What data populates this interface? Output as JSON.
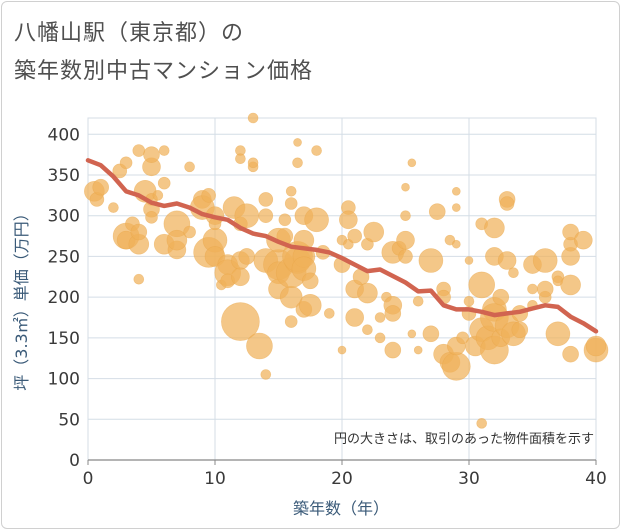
{
  "title_line1": "八幡山駅（東京都）の",
  "title_line2": "築年数別中古マンション価格",
  "chart_data": {
    "type": "scatter",
    "title": "八幡山駅（東京都）の築年数別中古マンション価格",
    "xlabel": "築年数（年）",
    "ylabel": "坪（3.3㎡）単価（万円）",
    "xlim": [
      0,
      40
    ],
    "ylim": [
      0,
      420
    ],
    "xticks": [
      0,
      10,
      20,
      30,
      40
    ],
    "yticks": [
      0,
      50,
      100,
      150,
      200,
      250,
      300,
      350,
      400
    ],
    "grid": true,
    "note": "円の大きさは、取引のあった物件面積を示す",
    "colors": {
      "bubble": "#f0b15a",
      "line": "#d16450",
      "grid": "#d4dde6",
      "axis": "#888888"
    },
    "series": [
      {
        "type": "line",
        "x": [
          0,
          1,
          2,
          3,
          4,
          5,
          6,
          7,
          8,
          9,
          10,
          11,
          12,
          13,
          14,
          15,
          16,
          17,
          18,
          19,
          20,
          21,
          22,
          23,
          24,
          25,
          26,
          27,
          28,
          29,
          30,
          31,
          32,
          33,
          34,
          35,
          36,
          37,
          38,
          39,
          40
        ],
        "values": [
          368,
          362,
          348,
          330,
          325,
          316,
          312,
          315,
          310,
          302,
          298,
          295,
          285,
          278,
          275,
          268,
          262,
          260,
          258,
          255,
          248,
          240,
          232,
          234,
          226,
          218,
          207,
          208,
          190,
          185,
          185,
          182,
          178,
          180,
          182,
          186,
          190,
          188,
          176,
          168,
          158
        ]
      },
      {
        "type": "scatter",
        "points": [
          [
            0.5,
            330,
            10
          ],
          [
            0.7,
            320,
            7
          ],
          [
            1,
            335,
            8
          ],
          [
            2,
            310,
            5
          ],
          [
            2.5,
            355,
            7
          ],
          [
            3,
            365,
            6
          ],
          [
            3,
            275,
            13
          ],
          [
            3,
            270,
            9
          ],
          [
            3.5,
            290,
            7
          ],
          [
            4,
            265,
            10
          ],
          [
            4,
            280,
            8
          ],
          [
            4,
            380,
            6
          ],
          [
            4,
            222,
            5
          ],
          [
            4.5,
            330,
            11
          ],
          [
            5,
            360,
            9
          ],
          [
            5,
            375,
            8
          ],
          [
            5,
            320,
            6
          ],
          [
            5,
            308,
            8
          ],
          [
            5,
            298,
            6
          ],
          [
            5.5,
            325,
            5
          ],
          [
            6,
            380,
            5
          ],
          [
            6,
            265,
            10
          ],
          [
            6,
            340,
            6
          ],
          [
            7,
            258,
            9
          ],
          [
            7,
            290,
            13
          ],
          [
            7,
            270,
            10
          ],
          [
            8,
            360,
            5
          ],
          [
            8,
            280,
            6
          ],
          [
            9,
            320,
            9
          ],
          [
            9,
            310,
            12
          ],
          [
            9.5,
            325,
            7
          ],
          [
            9.5,
            255,
            15
          ],
          [
            10,
            300,
            9
          ],
          [
            10,
            270,
            12
          ],
          [
            10,
            250,
            10
          ],
          [
            10,
            290,
            6
          ],
          [
            10.5,
            215,
            5
          ],
          [
            11,
            240,
            10
          ],
          [
            11,
            230,
            13
          ],
          [
            11,
            220,
            7
          ],
          [
            11.5,
            310,
            11
          ],
          [
            12,
            380,
            5
          ],
          [
            12,
            370,
            5
          ],
          [
            12,
            245,
            9
          ],
          [
            12,
            225,
            9
          ],
          [
            12,
            290,
            7
          ],
          [
            12,
            170,
            19
          ],
          [
            12.5,
            300,
            12
          ],
          [
            12.5,
            250,
            8
          ],
          [
            13,
            360,
            5
          ],
          [
            13,
            420,
            5
          ],
          [
            13,
            365,
            5
          ],
          [
            13.5,
            140,
            13
          ],
          [
            14,
            105,
            5
          ],
          [
            14,
            320,
            7
          ],
          [
            14,
            245,
            12
          ],
          [
            14,
            300,
            7
          ],
          [
            15,
            240,
            15
          ],
          [
            15,
            230,
            11
          ],
          [
            15,
            210,
            10
          ],
          [
            15,
            270,
            12
          ],
          [
            15.5,
            275,
            8
          ],
          [
            15.5,
            295,
            6
          ],
          [
            16,
            200,
            11
          ],
          [
            16,
            230,
            15
          ],
          [
            16,
            170,
            6
          ],
          [
            16,
            315,
            6
          ],
          [
            16,
            330,
            5
          ],
          [
            16.5,
            245,
            13
          ],
          [
            16.5,
            250,
            15
          ],
          [
            16.5,
            390,
            4
          ],
          [
            16.5,
            365,
            5
          ],
          [
            17,
            300,
            9
          ],
          [
            17,
            250,
            11
          ],
          [
            17,
            235,
            12
          ],
          [
            17,
            270,
            10
          ],
          [
            17,
            185,
            8
          ],
          [
            17.5,
            190,
            11
          ],
          [
            17.5,
            220,
            8
          ],
          [
            18,
            295,
            12
          ],
          [
            18,
            380,
            5
          ],
          [
            18.5,
            255,
            7
          ],
          [
            19,
            180,
            5
          ],
          [
            20,
            135,
            4
          ],
          [
            20,
            270,
            5
          ],
          [
            20,
            240,
            8
          ],
          [
            20.5,
            310,
            7
          ],
          [
            20.5,
            295,
            9
          ],
          [
            20.5,
            265,
            5
          ],
          [
            21,
            210,
            9
          ],
          [
            21,
            275,
            7
          ],
          [
            21,
            175,
            9
          ],
          [
            21.5,
            225,
            8
          ],
          [
            22,
            265,
            6
          ],
          [
            22,
            205,
            10
          ],
          [
            22,
            160,
            5
          ],
          [
            22.5,
            280,
            10
          ],
          [
            23,
            175,
            5
          ],
          [
            23,
            150,
            5
          ],
          [
            23.5,
            200,
            5
          ],
          [
            24,
            255,
            11
          ],
          [
            24,
            190,
            9
          ],
          [
            24,
            180,
            8
          ],
          [
            24,
            135,
            8
          ],
          [
            24.5,
            260,
            7
          ],
          [
            25,
            270,
            9
          ],
          [
            25,
            250,
            7
          ],
          [
            25,
            300,
            5
          ],
          [
            25,
            335,
            4
          ],
          [
            25.5,
            365,
            4
          ],
          [
            25.5,
            155,
            4
          ],
          [
            26,
            135,
            4
          ],
          [
            26,
            195,
            5
          ],
          [
            27,
            245,
            12
          ],
          [
            27,
            155,
            8
          ],
          [
            27.5,
            305,
            8
          ],
          [
            28,
            210,
            7
          ],
          [
            28,
            200,
            7
          ],
          [
            28,
            130,
            10
          ],
          [
            28.5,
            270,
            5
          ],
          [
            28.5,
            120,
            10
          ],
          [
            29,
            115,
            14
          ],
          [
            29,
            140,
            9
          ],
          [
            29,
            310,
            4
          ],
          [
            29,
            330,
            4
          ],
          [
            29,
            265,
            4
          ],
          [
            29.5,
            150,
            6
          ],
          [
            30,
            195,
            5
          ],
          [
            30,
            180,
            7
          ],
          [
            30,
            245,
            4
          ],
          [
            30.5,
            140,
            10
          ],
          [
            31,
            45,
            5
          ],
          [
            31,
            215,
            13
          ],
          [
            31,
            160,
            12
          ],
          [
            31,
            290,
            6
          ],
          [
            31.5,
            150,
            12
          ],
          [
            32,
            135,
            14
          ],
          [
            32,
            185,
            12
          ],
          [
            32,
            175,
            14
          ],
          [
            32,
            285,
            10
          ],
          [
            32,
            250,
            9
          ],
          [
            32.5,
            200,
            8
          ],
          [
            32.5,
            150,
            9
          ],
          [
            33,
            165,
            12
          ],
          [
            33,
            245,
            9
          ],
          [
            33,
            320,
            8
          ],
          [
            33,
            315,
            7
          ],
          [
            33.5,
            155,
            12
          ],
          [
            33.5,
            230,
            5
          ],
          [
            34,
            180,
            8
          ],
          [
            34,
            160,
            8
          ],
          [
            35,
            240,
            9
          ],
          [
            35,
            210,
            5
          ],
          [
            35,
            190,
            5
          ],
          [
            36,
            200,
            6
          ],
          [
            36,
            245,
            12
          ],
          [
            36,
            210,
            8
          ],
          [
            37,
            155,
            12
          ],
          [
            37,
            225,
            6
          ],
          [
            37,
            220,
            5
          ],
          [
            38,
            130,
            8
          ],
          [
            38,
            215,
            10
          ],
          [
            38,
            250,
            9
          ],
          [
            38,
            265,
            7
          ],
          [
            38,
            280,
            8
          ],
          [
            39,
            270,
            9
          ],
          [
            40,
            135,
            12
          ],
          [
            40,
            140,
            10
          ]
        ]
      }
    ]
  }
}
